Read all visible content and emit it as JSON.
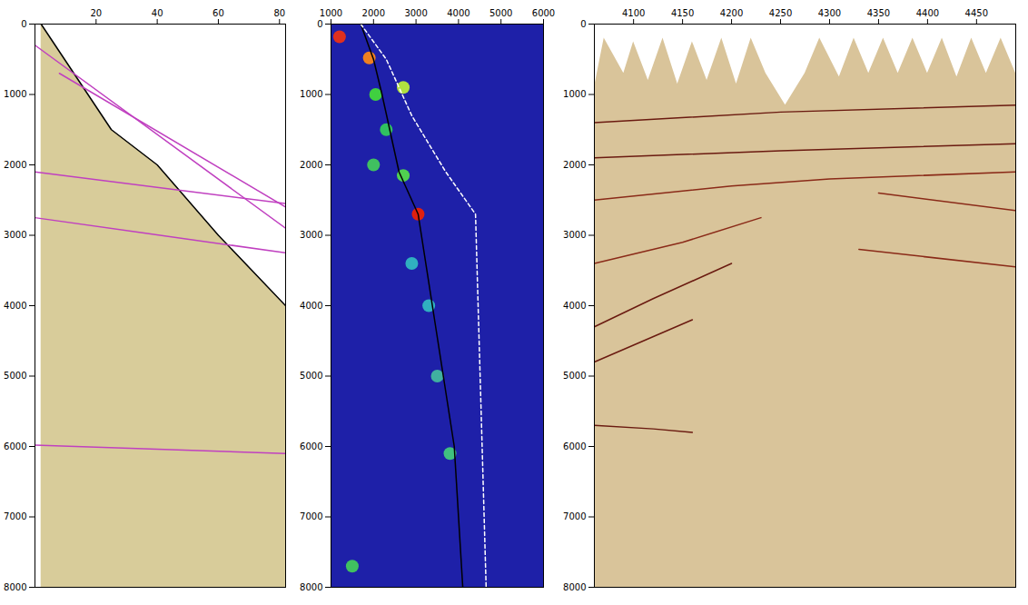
{
  "chart_data": [
    {
      "type": "line",
      "color": "#ffffff",
      "xlim": [
        0,
        82
      ],
      "xticks": [
        20,
        40,
        60,
        80
      ],
      "ylim": [
        0,
        8000
      ],
      "yticks": [
        0,
        1000,
        2000,
        3000,
        4000,
        5000,
        6000,
        7000,
        8000
      ],
      "series": [
        {
          "type": "area",
          "color": "#d8cc9a",
          "x": [
            2,
            25,
            40,
            60,
            82
          ],
          "values": [
            0,
            1500,
            2000,
            3000,
            4000
          ]
        },
        {
          "type": "line",
          "color": "#000000",
          "x": [
            2,
            25,
            40,
            60,
            82
          ],
          "values": [
            0,
            1500,
            2000,
            3000,
            4000
          ]
        },
        {
          "type": "line",
          "color": "#c040c0",
          "x": [
            0,
            82
          ],
          "values": [
            300,
            2900
          ]
        },
        {
          "type": "line",
          "color": "#c040c0",
          "x": [
            8,
            82
          ],
          "values": [
            700,
            2600
          ]
        },
        {
          "type": "line",
          "color": "#c040c0",
          "x": [
            0,
            82
          ],
          "values": [
            2100,
            2550
          ]
        },
        {
          "type": "line",
          "color": "#c040c0",
          "x": [
            0,
            82
          ],
          "values": [
            2750,
            3250
          ]
        },
        {
          "type": "line",
          "color": "#c040c0",
          "x": [
            0,
            82
          ],
          "values": [
            5980,
            6100
          ]
        }
      ]
    },
    {
      "type": "line",
      "color": "#1e20a8",
      "xlim": [
        1000,
        6000
      ],
      "xticks": [
        1000,
        2000,
        3000,
        4000,
        5000,
        6000
      ],
      "ylim": [
        0,
        8000
      ],
      "yticks": [
        0,
        1000,
        2000,
        3000,
        4000,
        5000,
        6000,
        7000,
        8000
      ],
      "series": [
        {
          "type": "dot",
          "x": [
            1200,
            1900,
            2050,
            2700,
            2300,
            2000,
            2700,
            3050,
            2900,
            3300,
            3500,
            3800,
            1500
          ],
          "values": [
            180,
            480,
            1000,
            900,
            1500,
            2000,
            2150,
            2700,
            3400,
            4000,
            5000,
            6100,
            7700
          ],
          "colors": [
            "#e0301e",
            "#f08020",
            "#40d040",
            "#b0e040",
            "#30c060",
            "#40c060",
            "#50d050",
            "#e02010",
            "#30b0c0",
            "#30b0c0",
            "#40b0a0",
            "#40c080",
            "#40c060"
          ]
        },
        {
          "type": "line",
          "color": "#000000",
          "x": [
            1700,
            2000,
            2200,
            2600,
            3050,
            3900,
            4100
          ],
          "values": [
            0,
            500,
            1000,
            2100,
            2700,
            6000,
            8000
          ]
        },
        {
          "type": "line",
          "color": "#ffffff",
          "line_style": "dashed",
          "x": [
            1700,
            2300,
            2900,
            3700,
            4400,
            4650
          ],
          "values": [
            0,
            500,
            1300,
            2100,
            2700,
            8000
          ]
        }
      ]
    },
    {
      "type": "line",
      "color": "#ffffff",
      "xlim": [
        4060,
        4490
      ],
      "xticks": [
        4100,
        4150,
        4200,
        4250,
        4300,
        4350,
        4400,
        4450
      ],
      "ylim": [
        0,
        8000
      ],
      "yticks": [
        0,
        1000,
        2000,
        3000,
        4000,
        5000,
        6000,
        7000,
        8000
      ],
      "series": [
        {
          "type": "area",
          "color": "#d9c49a",
          "x": [
            4060,
            4070,
            4090,
            4100,
            4115,
            4130,
            4145,
            4160,
            4175,
            4190,
            4205,
            4220,
            4235,
            4255,
            4275,
            4290,
            4310,
            4325,
            4340,
            4355,
            4370,
            4385,
            4400,
            4415,
            4430,
            4445,
            4460,
            4475,
            4490
          ],
          "values": [
            900,
            200,
            700,
            250,
            800,
            200,
            850,
            250,
            800,
            200,
            850,
            200,
            700,
            1150,
            700,
            200,
            750,
            200,
            700,
            200,
            700,
            200,
            700,
            200,
            750,
            200,
            700,
            200,
            700
          ]
        },
        {
          "type": "line",
          "color": "#6a1a10",
          "x": [
            4060,
            4250,
            4490
          ],
          "values": [
            1400,
            1250,
            1150
          ]
        },
        {
          "type": "line",
          "color": "#6a1a10",
          "x": [
            4060,
            4250,
            4490
          ],
          "values": [
            1900,
            1800,
            1700
          ]
        },
        {
          "type": "line",
          "color": "#8a2a18",
          "x": [
            4060,
            4200,
            4300,
            4490
          ],
          "values": [
            2500,
            2300,
            2200,
            2100
          ]
        },
        {
          "type": "line",
          "color": "#8a2a18",
          "x": [
            4060,
            4150,
            4230
          ],
          "values": [
            3400,
            3100,
            2750
          ]
        },
        {
          "type": "line",
          "color": "#6a1a10",
          "x": [
            4060,
            4120,
            4200
          ],
          "values": [
            4300,
            3900,
            3400
          ]
        },
        {
          "type": "line",
          "color": "#6a1a10",
          "x": [
            4060,
            4110,
            4160
          ],
          "values": [
            4800,
            4500,
            4200
          ]
        },
        {
          "type": "line",
          "color": "#8a2a18",
          "x": [
            4350,
            4490
          ],
          "values": [
            2400,
            2650
          ]
        },
        {
          "type": "line",
          "color": "#8a2a18",
          "x": [
            4330,
            4490
          ],
          "values": [
            3200,
            3450
          ]
        },
        {
          "type": "line",
          "color": "#6a1a10",
          "x": [
            4060,
            4120,
            4160
          ],
          "values": [
            5700,
            5750,
            5800
          ]
        }
      ]
    }
  ]
}
